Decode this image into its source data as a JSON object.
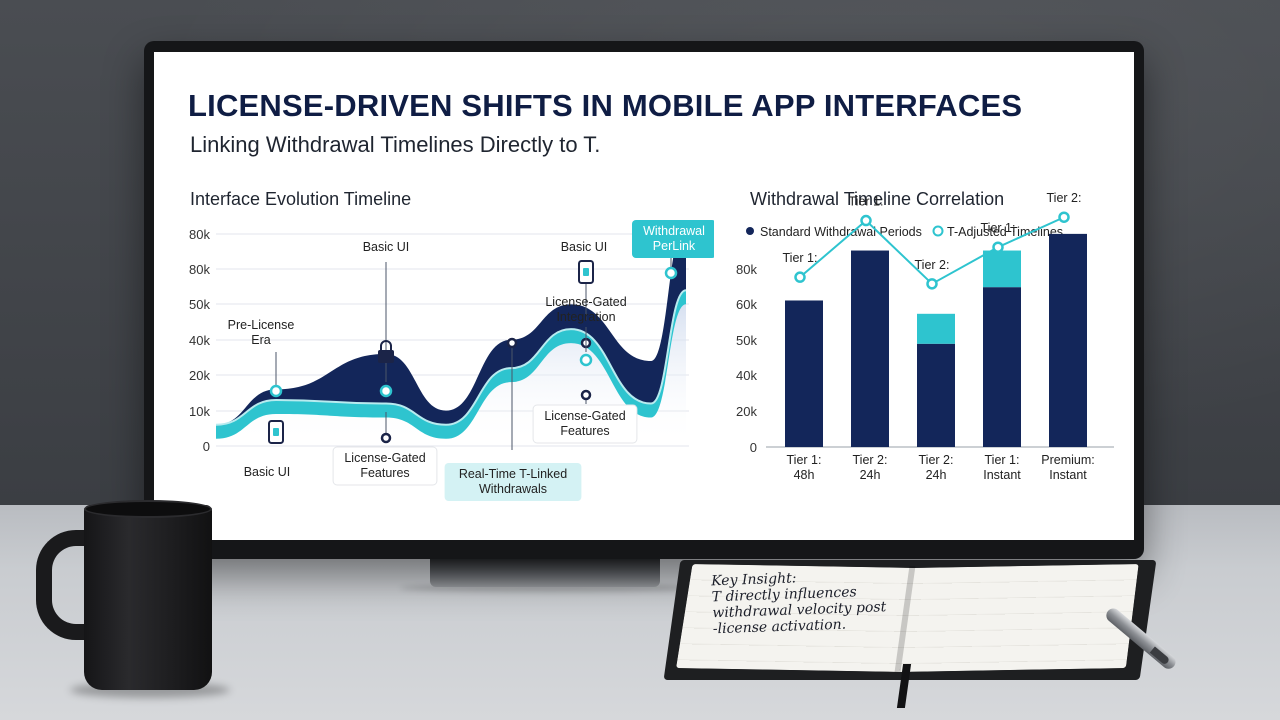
{
  "page": {
    "title": "LICENSE-DRIVEN SHIFTS IN MOBILE APP INTERFACES",
    "subtitle": "Linking Withdrawal Timelines Directly to T."
  },
  "colors": {
    "navy": "#13265a",
    "teal": "#2ec4cf",
    "text": "#1f2530"
  },
  "chart_data": [
    {
      "type": "area",
      "title": "Interface Evolution Timeline",
      "yticks": [
        "0",
        "10k",
        "20k",
        "40k",
        "50k",
        "80k",
        "80k"
      ],
      "series": [
        {
          "values": [
            6,
            16,
            26,
            10,
            30,
            40,
            24,
            63
          ]
        },
        {
          "values": [
            6,
            13,
            12,
            6,
            22,
            33,
            12,
            44
          ]
        }
      ],
      "annotations": [
        {
          "label": [
            "Pre-License",
            "Era"
          ]
        },
        {
          "label": [
            "Basic UI"
          ]
        },
        {
          "label": [
            "Basic UI"
          ]
        },
        {
          "label": [
            "License-Gated",
            "Integration"
          ]
        },
        {
          "label": [
            "Withdrawal",
            "PerLink"
          ],
          "boxed": "teal"
        },
        {
          "label": [
            "Basic UI"
          ]
        },
        {
          "label": [
            "License-Gated",
            "Features"
          ],
          "boxed": "light"
        },
        {
          "label": [
            "Real-Time T-Linked",
            "Withdrawals"
          ],
          "boxed": "teal-light"
        },
        {
          "label": [
            "License-Gated",
            "Features"
          ],
          "boxed": "light"
        }
      ]
    },
    {
      "type": "bar",
      "title": "Withdrawal Timeline Correlation",
      "legend": [
        "Standard Withdrawal Periods",
        "T-Adjusted Timelines"
      ],
      "yticks": [
        "0",
        "20k",
        "40k",
        "50k",
        "60k",
        "80k"
      ],
      "categories": [
        [
          "Tier 1:",
          "48h"
        ],
        [
          "Tier 2:",
          "24h"
        ],
        [
          "Tier 2:",
          "24h"
        ],
        [
          "Tier 1:",
          "Instant"
        ],
        [
          "Premium:",
          "Instant"
        ]
      ],
      "standard": [
        44,
        59,
        31,
        48,
        64
      ],
      "t_adjusted_extra": [
        0,
        0,
        9,
        11,
        0
      ],
      "line_values": [
        51,
        68,
        49,
        60,
        69
      ],
      "line_labels": [
        "Tier 1:",
        "Tier 1:",
        "Tier 2:",
        "Tier 1:",
        "Tier 2:"
      ]
    }
  ],
  "notebook": {
    "note_lines": [
      "Key Insight:",
      "T directly influences",
      "withdrawal velocity post",
      "-license activation."
    ]
  }
}
